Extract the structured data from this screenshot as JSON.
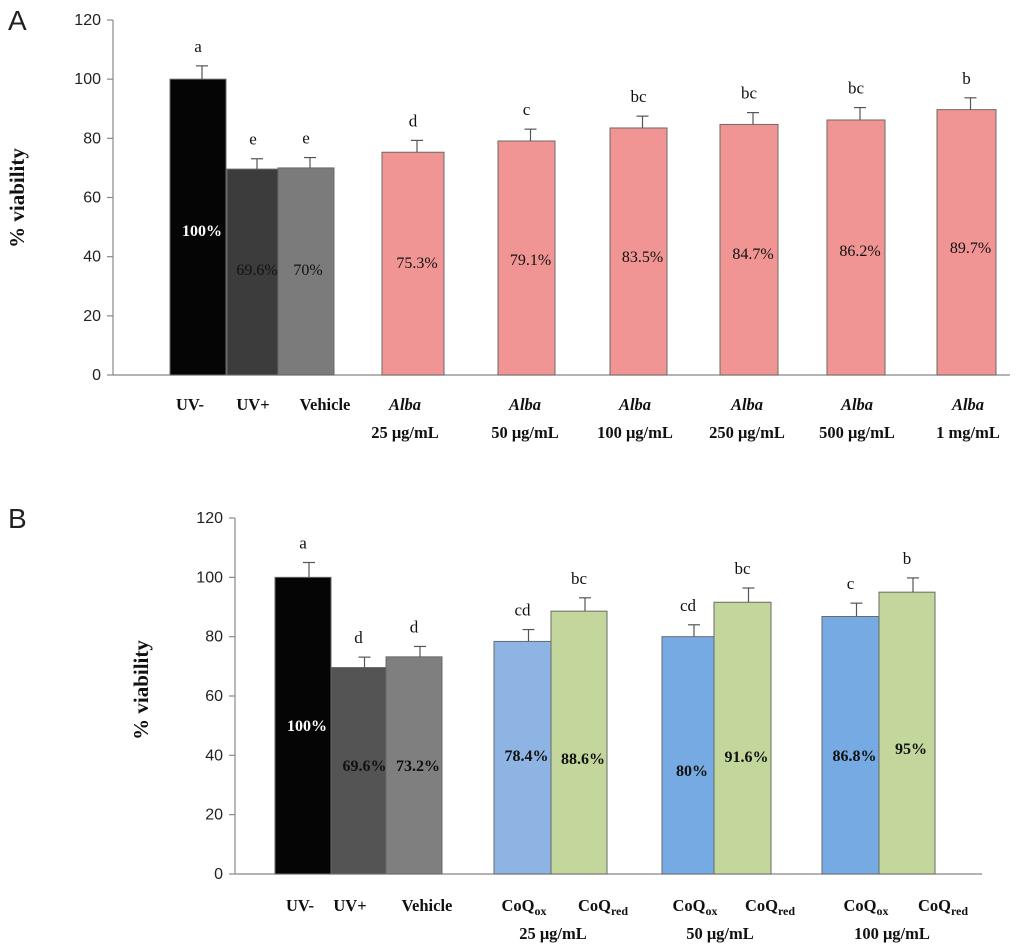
{
  "chart_data": [
    {
      "panel": "A",
      "type": "bar",
      "ylabel": "% viability",
      "ylim": [
        0,
        120
      ],
      "yticks": [
        0,
        20,
        40,
        60,
        80,
        100,
        120
      ],
      "categories": [
        {
          "line1": "UV-",
          "line2": "",
          "italic": false
        },
        {
          "line1": "UV+",
          "line2": "",
          "italic": false
        },
        {
          "line1": "Vehicle",
          "line2": "",
          "italic": false
        },
        {
          "line1": "Alba",
          "line2": "25 μg/mL",
          "italic": true
        },
        {
          "line1": "Alba",
          "line2": "50 μg/mL",
          "italic": true
        },
        {
          "line1": "Alba",
          "line2": "100 μg/mL",
          "italic": true
        },
        {
          "line1": "Alba",
          "line2": "250 μg/mL",
          "italic": true
        },
        {
          "line1": "Alba",
          "line2": "500 μg/mL",
          "italic": true
        },
        {
          "line1": "Alba",
          "line2": "1 mg/mL",
          "italic": true
        }
      ],
      "bars": [
        {
          "value": 100,
          "error": 4.5,
          "label": "100%",
          "sig": "a",
          "color": "#050505"
        },
        {
          "value": 69.6,
          "error": 3.5,
          "label": "69.6%",
          "sig": "e",
          "color": "#3c3c3c"
        },
        {
          "value": 70,
          "error": 3.5,
          "label": "70%",
          "sig": "e",
          "color": "#7b7b7b"
        },
        {
          "value": 75.3,
          "error": 4,
          "label": "75.3%",
          "sig": "d",
          "color": "#f09593"
        },
        {
          "value": 79.1,
          "error": 4,
          "label": "79.1%",
          "sig": "c",
          "color": "#f09593"
        },
        {
          "value": 83.5,
          "error": 4,
          "label": "83.5%",
          "sig": "bc",
          "color": "#f09593"
        },
        {
          "value": 84.7,
          "error": 4,
          "label": "84.7%",
          "sig": "bc",
          "color": "#f09593"
        },
        {
          "value": 86.2,
          "error": 4.2,
          "label": "86.2%",
          "sig": "bc",
          "color": "#f09593"
        },
        {
          "value": 89.7,
          "error": 4,
          "label": "89.7%",
          "sig": "b",
          "color": "#f09593"
        }
      ]
    },
    {
      "panel": "B",
      "type": "bar",
      "ylabel": "% viability",
      "ylim": [
        0,
        120
      ],
      "yticks": [
        0,
        20,
        40,
        60,
        80,
        100,
        120
      ],
      "categories": [
        {
          "line1": "UV-",
          "line2": ""
        },
        {
          "line1": "UV+",
          "line2": ""
        },
        {
          "line1": "Vehicle",
          "line2": ""
        },
        {
          "line1": "CoQ",
          "sub": "ox",
          "line1b": "CoQ",
          "subb": "red",
          "line2": "25 μg/mL"
        },
        {
          "line1": "CoQ",
          "sub": "ox",
          "line1b": "CoQ",
          "subb": "red",
          "line2": "50 μg/mL"
        },
        {
          "line1": "CoQ",
          "sub": "ox",
          "line1b": "CoQ",
          "subb": "red",
          "line2": "100 μg/mL"
        }
      ],
      "bars": [
        {
          "value": 100,
          "error": 5,
          "label": "100%",
          "sig": "a",
          "color": "#050505"
        },
        {
          "value": 69.6,
          "error": 3.5,
          "label": "69.6%",
          "sig": "d",
          "color": "#545454"
        },
        {
          "value": 73.2,
          "error": 3.5,
          "label": "73.2%",
          "sig": "d",
          "color": "#7f7f7f"
        },
        {
          "value": 78.4,
          "error": 4,
          "label": "78.4%",
          "sig": "cd",
          "color": "#8db4e2"
        },
        {
          "value": 88.6,
          "error": 4.5,
          "label": "88.6%",
          "sig": "bc",
          "color": "#c3d69b"
        },
        {
          "value": 80,
          "error": 4,
          "label": "80%",
          "sig": "cd",
          "color": "#75abe2"
        },
        {
          "value": 91.6,
          "error": 4.8,
          "label": "91.6%",
          "sig": "bc",
          "color": "#c3d69b"
        },
        {
          "value": 86.8,
          "error": 4.5,
          "label": "86.8%",
          "sig": "c",
          "color": "#75abe2"
        },
        {
          "value": 95,
          "error": 4.8,
          "label": "95%",
          "sig": "b",
          "color": "#c3d69b"
        }
      ]
    }
  ]
}
